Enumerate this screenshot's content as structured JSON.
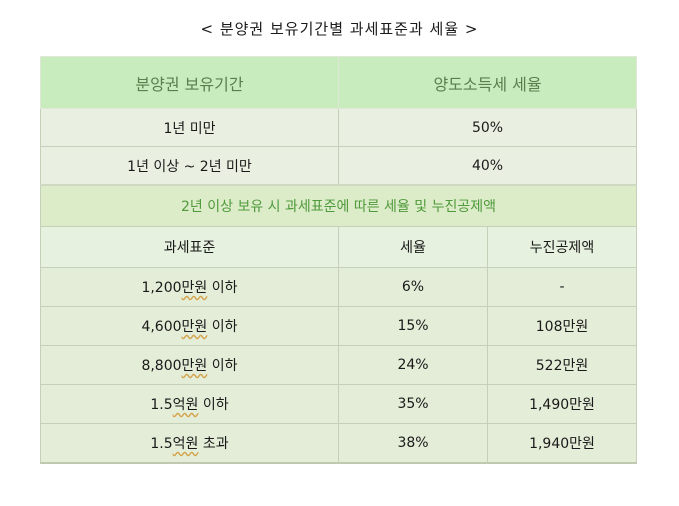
{
  "title": "< 분양권 보유기간별 과세표준과 세율 >",
  "period_table": {
    "headers": [
      "분양권 보유기간",
      "양도소득세 세율"
    ],
    "rows": [
      {
        "period": "1년 미만",
        "rate": "50%"
      },
      {
        "period": "1년 이상 ~ 2년 미만",
        "rate": "40%"
      }
    ]
  },
  "section_heading": "2년 이상 보유 시 과세표준에 따른 세율 및 누진공제액",
  "bracket_table": {
    "headers": [
      "과세표준",
      "세율",
      "누진공제액"
    ],
    "rows": [
      {
        "amount": "1,200",
        "unit": "만원",
        "suffix": " 이하",
        "rate": "6%",
        "deduction": "-"
      },
      {
        "amount": "4,600",
        "unit": "만원",
        "suffix": " 이하",
        "rate": "15%",
        "deduction": "108만원"
      },
      {
        "amount": "8,800",
        "unit": "만원",
        "suffix": " 이하",
        "rate": "24%",
        "deduction": "522만원"
      },
      {
        "amount": "1.5",
        "unit": "억원",
        "suffix": " 이하",
        "rate": "35%",
        "deduction": "1,490만원"
      },
      {
        "amount": "1.5",
        "unit": "억원",
        "suffix": " 초과",
        "rate": "38%",
        "deduction": "1,940만원"
      }
    ]
  }
}
